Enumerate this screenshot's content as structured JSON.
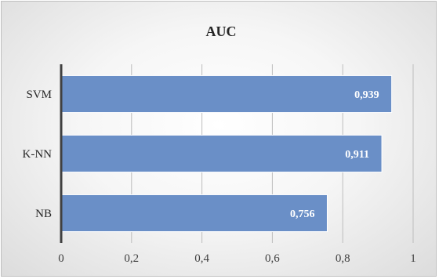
{
  "chart_data": {
    "type": "bar",
    "orientation": "horizontal",
    "title": "AUC",
    "categories": [
      "SVM",
      "K-NN",
      "NB"
    ],
    "values": [
      0.939,
      0.911,
      0.756
    ],
    "data_labels": [
      "0,939",
      "0,911",
      "0,756"
    ],
    "xlim": [
      0,
      1
    ],
    "x_ticks": [
      0,
      0.2,
      0.4,
      0.6,
      0.8,
      1
    ],
    "x_tick_labels": [
      "0",
      "0,2",
      "0,4",
      "0,6",
      "0,8",
      "1"
    ],
    "grid": "vertical",
    "legend": "none",
    "bar_color": "#6a8fc7",
    "bar_edge_color": "#ffffff"
  }
}
